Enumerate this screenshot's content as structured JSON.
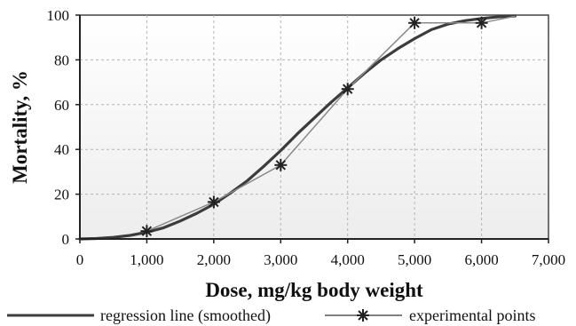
{
  "chart_data": {
    "type": "line",
    "xlabel": "Dose, mg/kg body weight",
    "ylabel": "Mortality, %",
    "xlim": [
      0,
      7000
    ],
    "ylim": [
      0,
      100
    ],
    "x_ticks": [
      0,
      1000,
      2000,
      3000,
      4000,
      5000,
      6000,
      7000
    ],
    "x_tick_labels": [
      "0",
      "1,000",
      "2,000",
      "3,000",
      "4,000",
      "5,000",
      "6,000",
      "7,000"
    ],
    "y_ticks": [
      0,
      20,
      40,
      60,
      80,
      100
    ],
    "y_tick_labels": [
      "0",
      "20",
      "40",
      "60",
      "80",
      "100"
    ],
    "grid": true,
    "legend_position": "bottom",
    "series": [
      {
        "name": "regression line (smoothed)",
        "style": "smooth-line",
        "color": "#3c3c3c",
        "x": [
          0,
          250,
          500,
          750,
          1000,
          1250,
          1500,
          1750,
          2000,
          2250,
          2500,
          2750,
          3000,
          3250,
          3500,
          3750,
          4000,
          4250,
          4500,
          4750,
          5000,
          5250,
          5500,
          5750,
          6000,
          6250,
          6500
        ],
        "y": [
          0,
          0.2,
          0.7,
          1.6,
          3,
          5,
          8,
          11.5,
          15.5,
          20.5,
          26,
          32.5,
          39.5,
          47,
          54,
          61,
          67.5,
          74,
          80,
          85,
          89.5,
          93.5,
          96,
          97.5,
          98.5,
          99.2,
          99.6
        ]
      },
      {
        "name": "experimental points",
        "style": "line-with-markers",
        "color": "#8a8a8a",
        "marker_color": "#222222",
        "x": [
          1000,
          2000,
          3000,
          4000,
          5000,
          6000,
          6500
        ],
        "y": [
          3.5,
          16.5,
          33,
          67,
          96.5,
          96.5,
          99.5
        ]
      }
    ]
  },
  "legend": {
    "items": [
      {
        "label": "regression line (smoothed)",
        "symbol": "line"
      },
      {
        "label": "experimental points",
        "symbol": "line-star"
      }
    ]
  }
}
